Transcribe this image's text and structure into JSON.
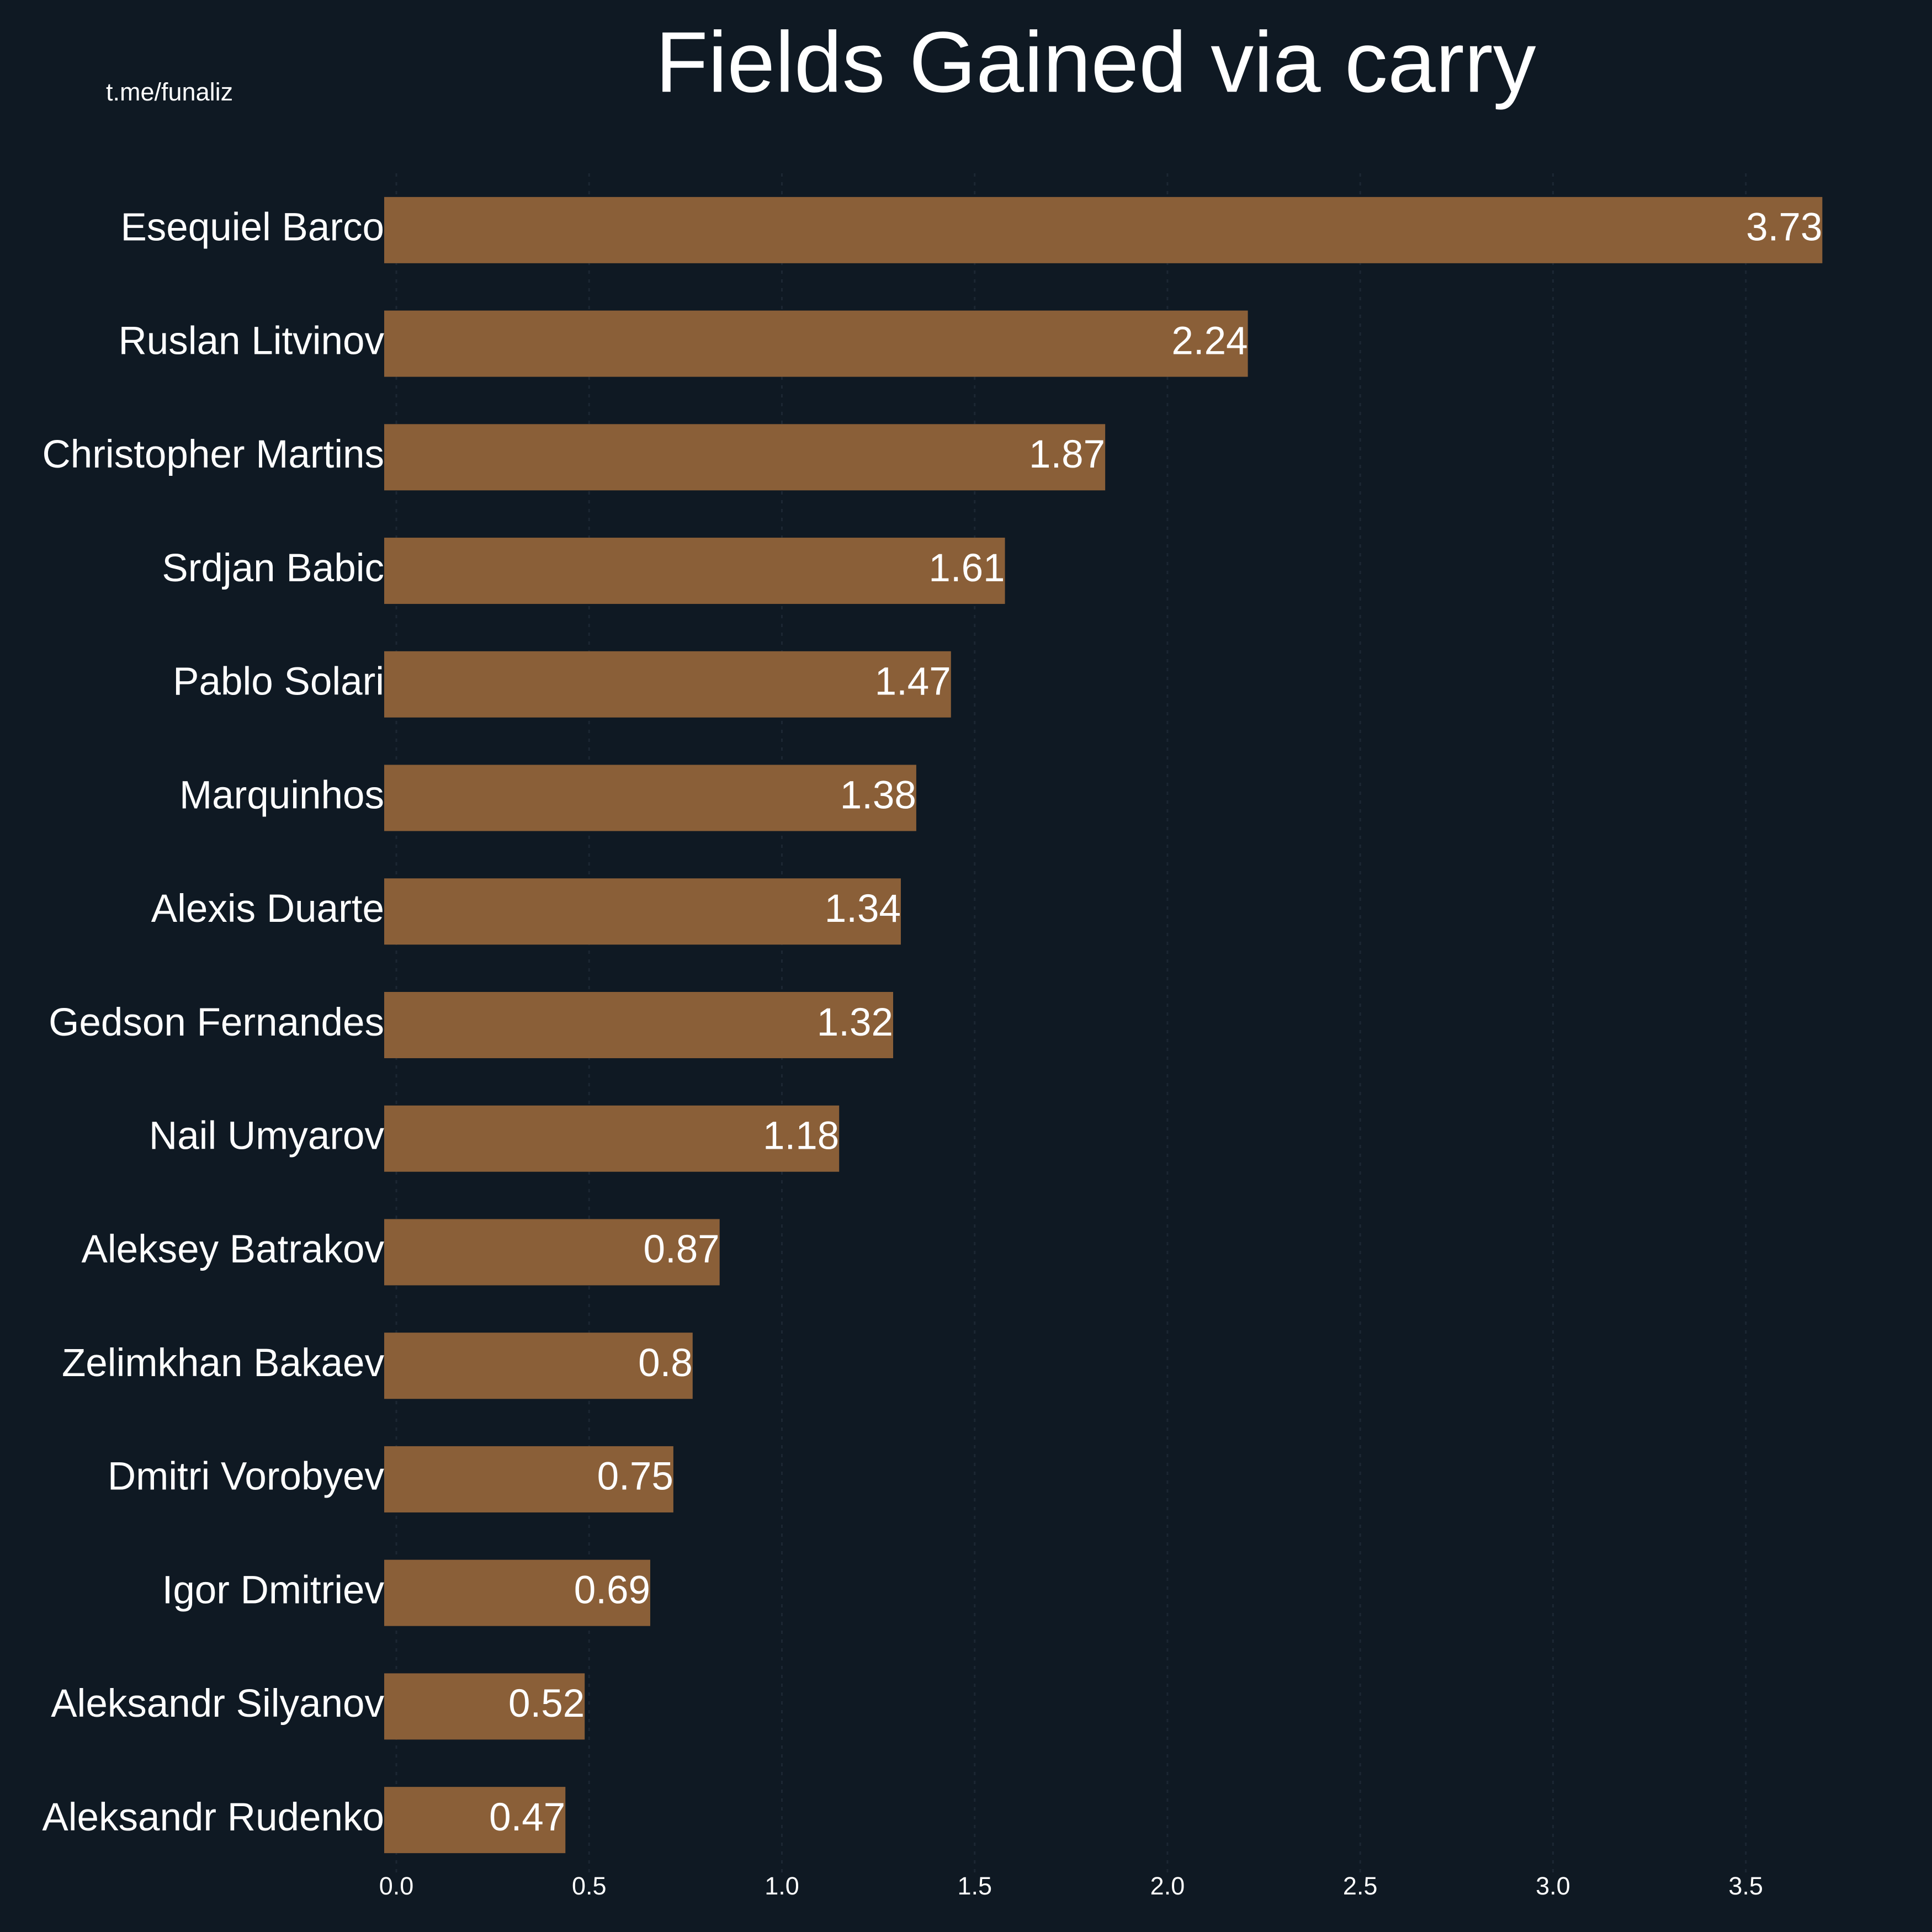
{
  "chart_data": {
    "type": "barh",
    "title": "Fields Gained via carry",
    "watermark": "t.me/funaliz",
    "categories": [
      "Esequiel Barco",
      "Ruslan Litvinov",
      "Christopher Martins",
      "Srdjan Babic",
      "Pablo Solari",
      "Marquinhos",
      "Alexis Duarte",
      "Gedson Fernandes",
      "Nail Umyarov",
      "Aleksey Batrakov",
      "Zelimkhan Bakaev",
      "Dmitri Vorobyev",
      "Igor Dmitriev",
      "Aleksandr Silyanov",
      "Aleksandr Rudenko"
    ],
    "values": [
      3.73,
      2.24,
      1.87,
      1.61,
      1.47,
      1.38,
      1.34,
      1.32,
      1.18,
      0.87,
      0.8,
      0.75,
      0.69,
      0.52,
      0.47
    ],
    "color": "#8a5f38",
    "xlim": [
      0,
      3.95
    ],
    "xticks": [
      {
        "value": 0,
        "label": "0.0"
      },
      0.5,
      {
        "value": 1,
        "label": "1.0"
      },
      1.5,
      {
        "value": 2,
        "label": "2.0"
      },
      2.5,
      {
        "value": 3,
        "label": "3.0"
      },
      3.5
    ],
    "grid": true
  }
}
